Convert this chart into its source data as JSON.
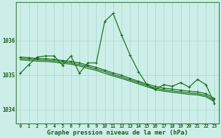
{
  "title": "Graphe pression niveau de la mer (hPa)",
  "bg_color": "#cceee8",
  "plot_bg_color": "#cceee8",
  "grid_color": "#aad4ce",
  "line_color": "#1a6e1a",
  "yticks": [
    1034,
    1035,
    1036
  ],
  "ylim": [
    1033.6,
    1037.1
  ],
  "xlim": [
    -0.5,
    23.5
  ],
  "xticks": [
    0,
    1,
    2,
    3,
    4,
    5,
    6,
    7,
    8,
    9,
    10,
    11,
    12,
    13,
    14,
    15,
    16,
    17,
    18,
    19,
    20,
    21,
    22,
    23
  ],
  "main_y": [
    1035.05,
    1035.3,
    1035.52,
    1035.55,
    1035.55,
    1035.28,
    1035.55,
    1035.05,
    1035.35,
    1035.35,
    1036.55,
    1036.78,
    1036.15,
    1035.58,
    1035.1,
    1034.72,
    1034.58,
    1034.72,
    1034.67,
    1034.78,
    1034.65,
    1034.87,
    1034.72,
    1034.18
  ],
  "decline_y1": [
    1035.52,
    1035.5,
    1035.48,
    1035.47,
    1035.45,
    1035.42,
    1035.39,
    1035.35,
    1035.28,
    1035.22,
    1035.14,
    1035.06,
    1034.99,
    1034.9,
    1034.82,
    1034.74,
    1034.67,
    1034.62,
    1034.59,
    1034.56,
    1034.53,
    1034.51,
    1034.46,
    1034.32
  ],
  "decline_y2": [
    1035.48,
    1035.46,
    1035.44,
    1035.43,
    1035.41,
    1035.38,
    1035.35,
    1035.3,
    1035.24,
    1035.17,
    1035.1,
    1035.01,
    1034.94,
    1034.86,
    1034.78,
    1034.7,
    1034.62,
    1034.57,
    1034.54,
    1034.51,
    1034.48,
    1034.46,
    1034.41,
    1034.27
  ],
  "decline_y3": [
    1035.44,
    1035.42,
    1035.4,
    1035.39,
    1035.37,
    1035.34,
    1035.31,
    1035.26,
    1035.19,
    1035.13,
    1035.05,
    1034.97,
    1034.9,
    1034.82,
    1034.74,
    1034.66,
    1034.58,
    1034.53,
    1034.5,
    1034.47,
    1034.44,
    1034.42,
    1034.37,
    1034.23
  ],
  "marker_size": 3.5,
  "line_width": 0.9,
  "title_fontsize": 6.5
}
